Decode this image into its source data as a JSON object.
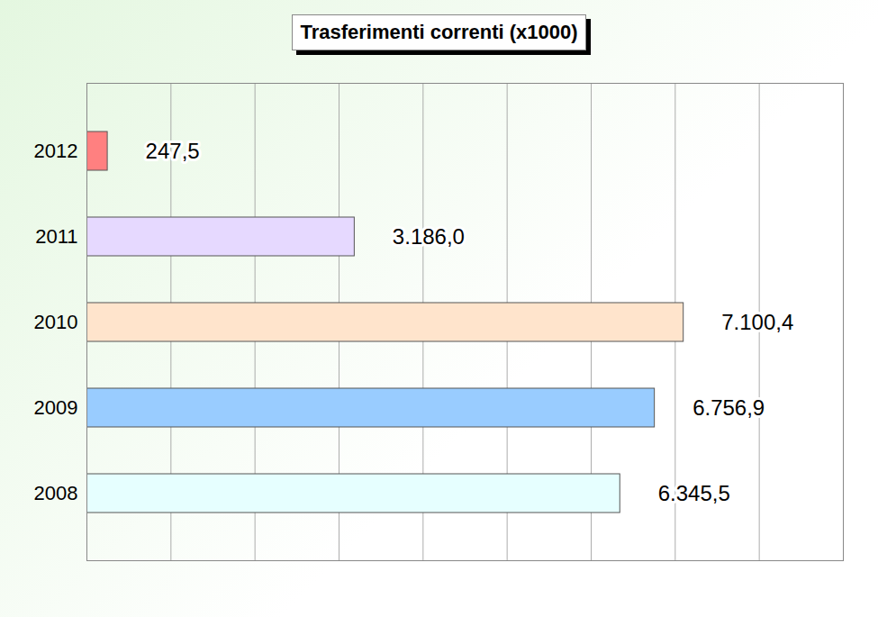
{
  "chart_data": {
    "type": "bar",
    "title": "Trasferimenti correnti (x1000)",
    "orientation": "horizontal",
    "categories": [
      "2012",
      "2011",
      "2010",
      "2009",
      "2008"
    ],
    "values": [
      247.5,
      3186.0,
      7100.4,
      6756.9,
      6345.5
    ],
    "value_labels": [
      "247,5",
      "3.186,0",
      "7.100,4",
      "6.756,9",
      "6.345,5"
    ],
    "colors": [
      "#ff8080",
      "#e6d9ff",
      "#ffe4cc",
      "#99ccff",
      "#e6ffff"
    ],
    "xlim": [
      0,
      9000
    ],
    "xticks": [
      0,
      1000,
      2000,
      3000,
      4000,
      5000,
      6000,
      7000,
      8000,
      9000
    ],
    "grid": true,
    "data_labels": true,
    "tick_labels": "y"
  }
}
